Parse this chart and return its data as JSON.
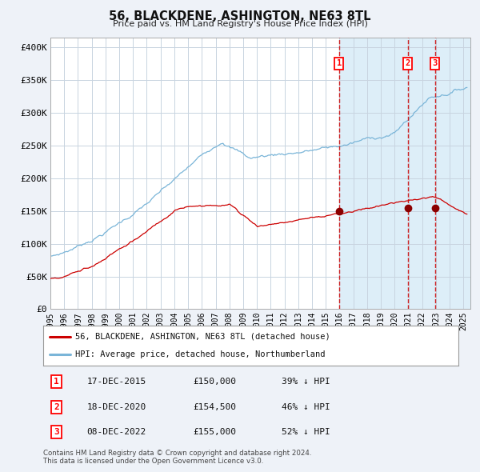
{
  "title": "56, BLACKDENE, ASHINGTON, NE63 8TL",
  "subtitle": "Price paid vs. HM Land Registry's House Price Index (HPI)",
  "ylabel_ticks": [
    "£0",
    "£50K",
    "£100K",
    "£150K",
    "£200K",
    "£250K",
    "£300K",
    "£350K",
    "£400K"
  ],
  "ytick_values": [
    0,
    50000,
    100000,
    150000,
    200000,
    250000,
    300000,
    350000,
    400000
  ],
  "ylim": [
    0,
    415000
  ],
  "xlim_start": 1995.0,
  "xlim_end": 2025.5,
  "hpi_color": "#7ab5d8",
  "hpi_fill_color": "#ddeef8",
  "price_color": "#cc0000",
  "marker_color": "#8b0000",
  "vline_color": "#cc0000",
  "shade_start": 2015.95,
  "transaction_dates": [
    2015.958,
    2020.958,
    2022.917
  ],
  "transaction_prices": [
    150000,
    154500,
    155000
  ],
  "transaction_labels": [
    "1",
    "2",
    "3"
  ],
  "legend_label_red": "56, BLACKDENE, ASHINGTON, NE63 8TL (detached house)",
  "legend_label_blue": "HPI: Average price, detached house, Northumberland",
  "table_rows": [
    [
      "1",
      "17-DEC-2015",
      "£150,000",
      "39% ↓ HPI"
    ],
    [
      "2",
      "18-DEC-2020",
      "£154,500",
      "46% ↓ HPI"
    ],
    [
      "3",
      "08-DEC-2022",
      "£155,000",
      "52% ↓ HPI"
    ]
  ],
  "footnote1": "Contains HM Land Registry data © Crown copyright and database right 2024.",
  "footnote2": "This data is licensed under the Open Government Licence v3.0.",
  "background_color": "#eef2f8",
  "plot_bg_color": "#ffffff",
  "grid_color": "#c8d4e0"
}
